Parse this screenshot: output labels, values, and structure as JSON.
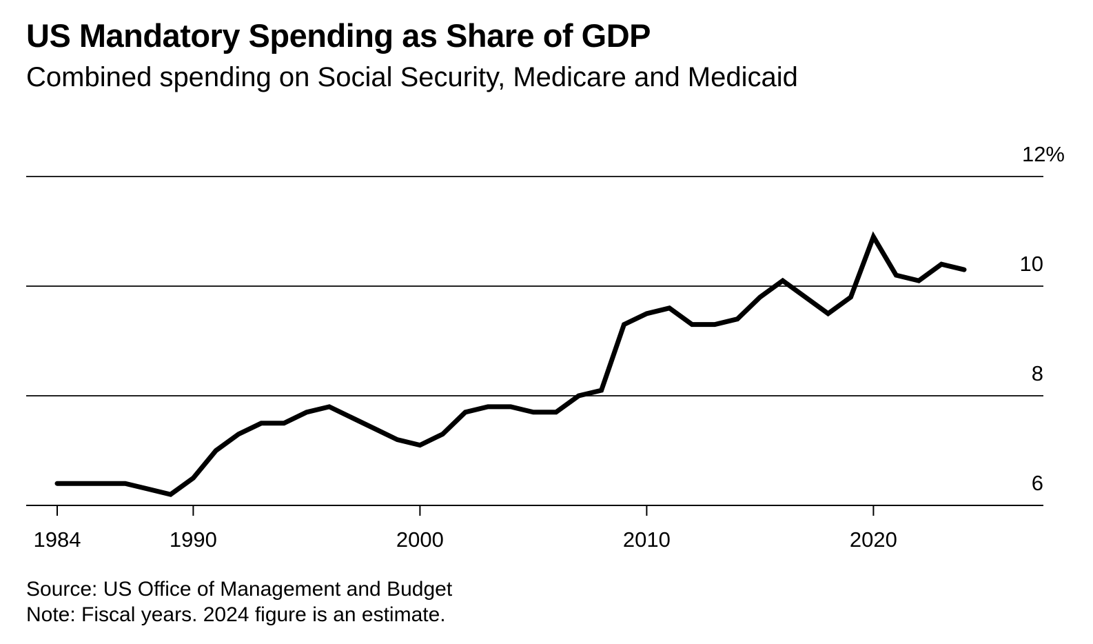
{
  "header": {
    "title": "US Mandatory Spending as Share of GDP",
    "subtitle": "Combined spending on Social Security, Medicare and Medicaid"
  },
  "footer": {
    "source": "Source: US Office of Management and Budget",
    "note": "Note: Fiscal years. 2024 figure is an estimate."
  },
  "chart_data": {
    "type": "line",
    "title": "US Mandatory Spending as Share of GDP",
    "subtitle": "Combined spending on Social Security, Medicare and Medicaid",
    "xlabel": "",
    "ylabel": "",
    "xlim": [
      1982.6,
      2026
    ],
    "ylim": [
      6,
      12
    ],
    "grid": true,
    "x_ticks": [
      1984,
      1990,
      2000,
      2010,
      2020
    ],
    "x_tick_labels": [
      "1984",
      "1990",
      "2000",
      "2010",
      "2020"
    ],
    "y_ticks": [
      6,
      8,
      10,
      12
    ],
    "y_tick_labels": [
      "6",
      "8",
      "10",
      "12%"
    ],
    "y_axis_side": "right",
    "line_color": "#000000",
    "series": [
      {
        "name": "Mandatory spending (% of GDP)",
        "x": [
          1984,
          1985,
          1986,
          1987,
          1988,
          1989,
          1990,
          1991,
          1992,
          1993,
          1994,
          1995,
          1996,
          1997,
          1998,
          1999,
          2000,
          2001,
          2002,
          2003,
          2004,
          2005,
          2006,
          2007,
          2008,
          2009,
          2010,
          2011,
          2012,
          2013,
          2014,
          2015,
          2016,
          2017,
          2018,
          2019,
          2020,
          2021,
          2022,
          2023,
          2024
        ],
        "values": [
          6.4,
          6.4,
          6.4,
          6.4,
          6.3,
          6.2,
          6.5,
          7.0,
          7.3,
          7.5,
          7.5,
          7.7,
          7.8,
          7.6,
          7.4,
          7.2,
          7.1,
          7.3,
          7.7,
          7.8,
          7.8,
          7.7,
          7.7,
          8.0,
          8.1,
          9.3,
          9.5,
          9.6,
          9.3,
          9.3,
          9.4,
          9.8,
          10.1,
          9.8,
          9.5,
          9.8,
          10.9,
          10.2,
          10.1,
          10.4,
          10.3
        ]
      }
    ]
  }
}
